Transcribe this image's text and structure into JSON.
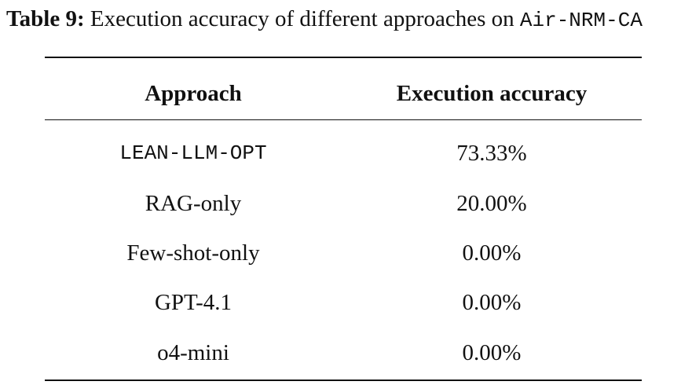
{
  "caption": {
    "label": "Table 9:",
    "text": " Execution accuracy of different approaches on ",
    "dataset": "Air-NRM-CA"
  },
  "table": {
    "headers": [
      "Approach",
      "Execution accuracy"
    ],
    "rows": [
      {
        "approach": "LEAN-LLM-OPT",
        "accuracy": "73.33%"
      },
      {
        "approach": "RAG-only",
        "accuracy": "20.00%"
      },
      {
        "approach": "Few-shot-only",
        "accuracy": "0.00%"
      },
      {
        "approach": "GPT-4.1",
        "accuracy": "0.00%"
      },
      {
        "approach": "o4-mini",
        "accuracy": "0.00%"
      }
    ]
  }
}
